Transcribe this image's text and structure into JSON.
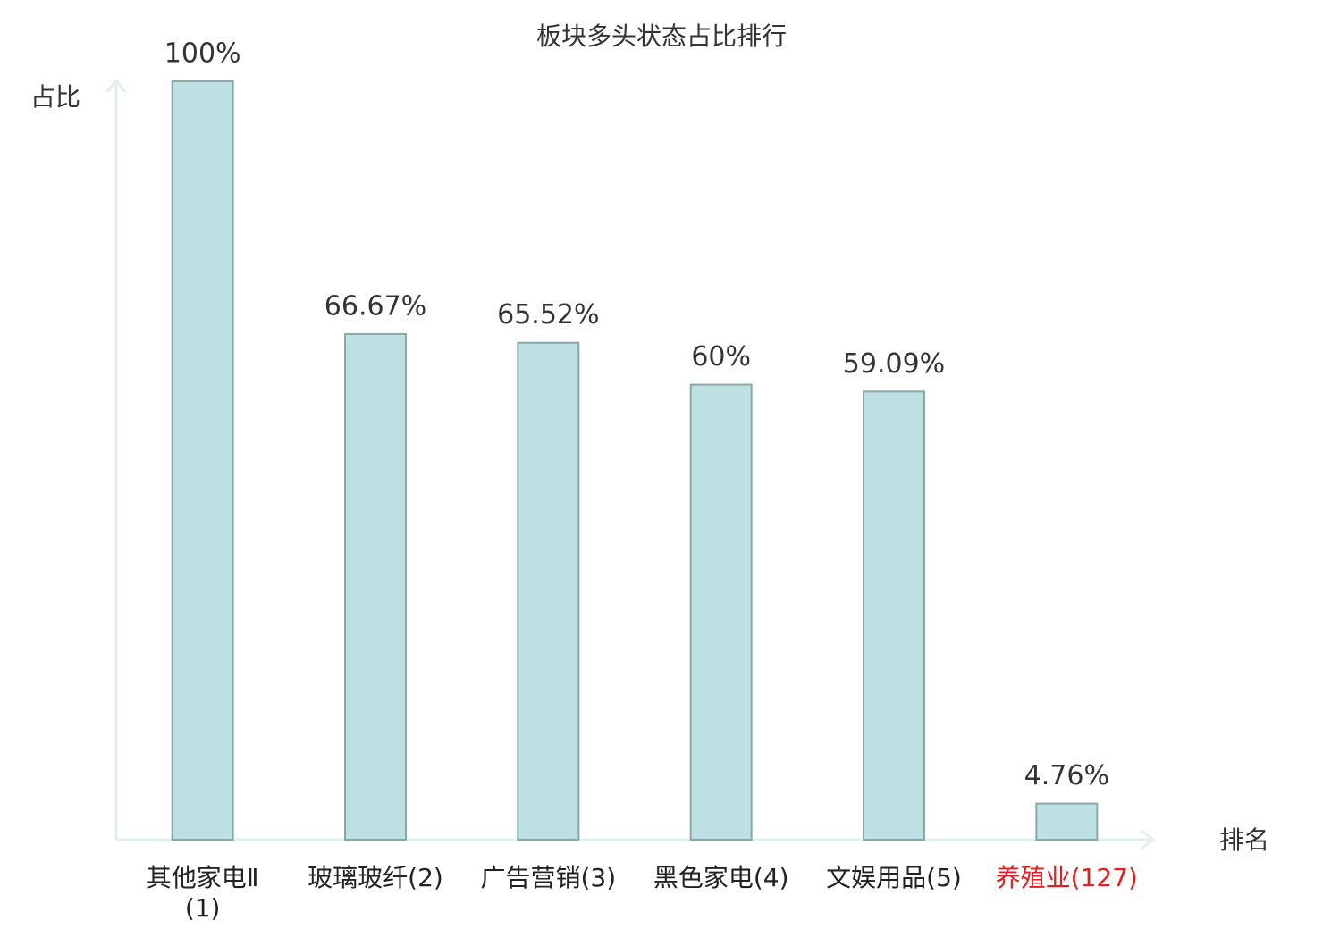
{
  "chart_data": {
    "type": "bar",
    "title": "板块多头状态占比排行",
    "y_label": "占比",
    "x_label": "排名",
    "categories": [
      "其他家电Ⅱ(1)",
      "玻璃玻纤(2)",
      "广告营销(3)",
      "黑色家电(4)",
      "文娱用品(5)",
      "养殖业(127)"
    ],
    "category_colors": [
      "#222222",
      "#222222",
      "#222222",
      "#222222",
      "#222222",
      "#e02020"
    ],
    "values": [
      100,
      66.67,
      65.52,
      60,
      59.09,
      4.76
    ],
    "value_labels": [
      "100%",
      "66.67%",
      "65.52%",
      "60%",
      "59.09%",
      "4.76%"
    ],
    "color": "#bde0e2",
    "edge_color": "#8aa8aa",
    "axis_color": "#dff0ee",
    "ylim": [
      0,
      100
    ]
  }
}
